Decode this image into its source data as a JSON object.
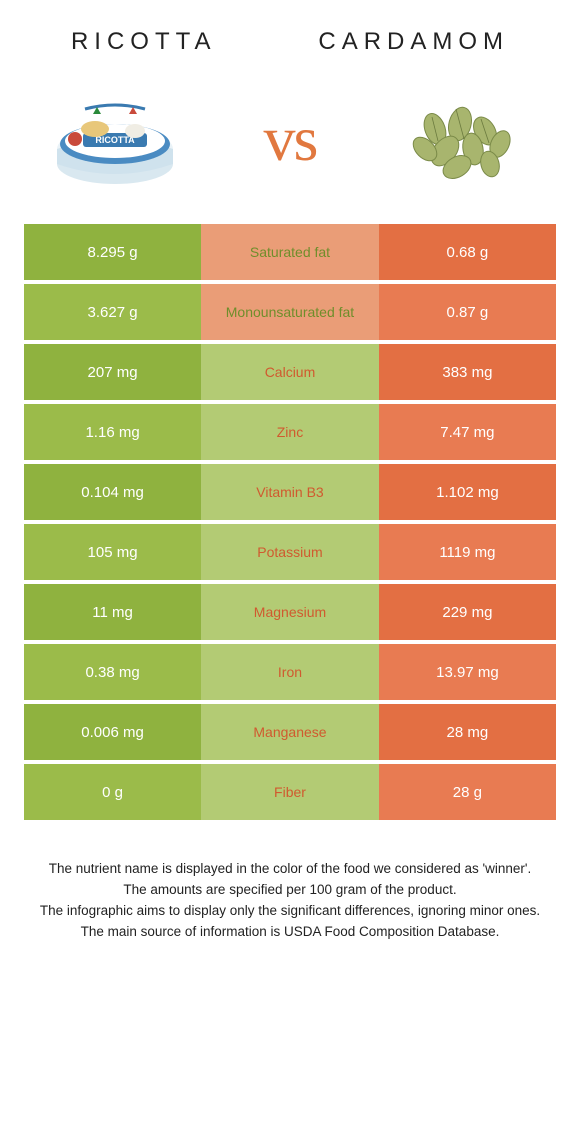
{
  "colors": {
    "left_color": "#8fb23f",
    "left_color_alt": "#9bbb4a",
    "right_color": "#e36f43",
    "right_color_alt": "#e87b52",
    "mid_left": "#e36f43",
    "mid_right": "#8fb23f",
    "mid_bg_from_left": "#e8935f",
    "mid_bg_from_right": "#b0c96e"
  },
  "header": {
    "left_title": "RICOTTA",
    "right_title": "CARDAMOM",
    "vs": "vs"
  },
  "rows": [
    {
      "left": "8.295 g",
      "label": "Saturated fat",
      "right": "0.68 g",
      "winner": "left"
    },
    {
      "left": "3.627 g",
      "label": "Monounsaturated fat",
      "right": "0.87 g",
      "winner": "left"
    },
    {
      "left": "207 mg",
      "label": "Calcium",
      "right": "383 mg",
      "winner": "right"
    },
    {
      "left": "1.16 mg",
      "label": "Zinc",
      "right": "7.47 mg",
      "winner": "right"
    },
    {
      "left": "0.104 mg",
      "label": "Vitamin B3",
      "right": "1.102 mg",
      "winner": "right"
    },
    {
      "left": "105 mg",
      "label": "Potassium",
      "right": "1119 mg",
      "winner": "right"
    },
    {
      "left": "11 mg",
      "label": "Magnesium",
      "right": "229 mg",
      "winner": "right"
    },
    {
      "left": "0.38 mg",
      "label": "Iron",
      "right": "13.97 mg",
      "winner": "right"
    },
    {
      "left": "0.006 mg",
      "label": "Manganese",
      "right": "28 mg",
      "winner": "right"
    },
    {
      "left": "0 g",
      "label": "Fiber",
      "right": "28 g",
      "winner": "right"
    }
  ],
  "footer": {
    "line1": "The nutrient name is displayed in the color of the food we considered as 'winner'.",
    "line2": "The amounts are specified per 100 gram of the product.",
    "line3": "The infographic aims to display only the significant differences, ignoring minor ones.",
    "line4": "The main source of information is USDA Food Composition Database."
  }
}
